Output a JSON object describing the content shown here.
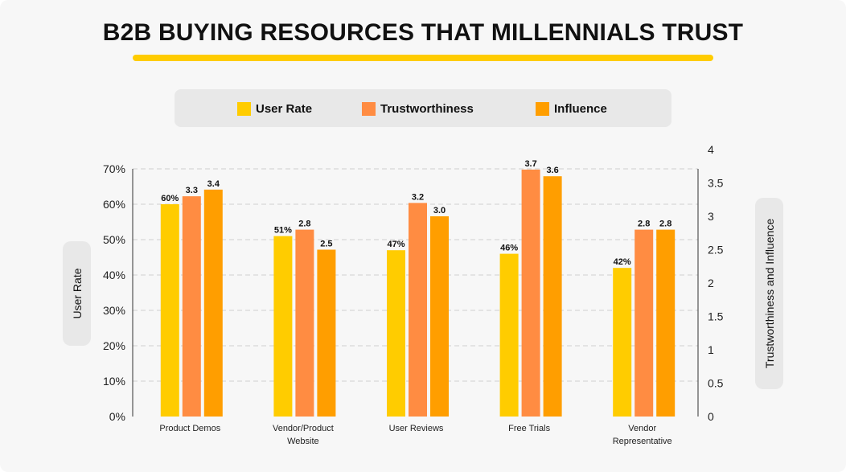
{
  "title": "B2B BUYING RESOURCES THAT MILLENNIALS TRUST",
  "legend": [
    {
      "label": "User Rate",
      "color": "#ffcc00"
    },
    {
      "label": "Trustworthiness",
      "color": "#ff8c42"
    },
    {
      "label": "Influence",
      "color": "#ff9e00"
    }
  ],
  "left_axis_title": "User Rate",
  "right_axis_title": "Trustworthiness and Influence",
  "chart_data": {
    "type": "bar",
    "title": "B2B BUYING RESOURCES THAT MILLENNIALS TRUST",
    "categories": [
      [
        "Product Demos"
      ],
      [
        "Vendor/Product",
        "Website"
      ],
      [
        "User Reviews"
      ],
      [
        "Free Trials"
      ],
      [
        "Vendor",
        "Representative"
      ]
    ],
    "series": [
      {
        "name": "User Rate",
        "axis": "left",
        "color": "#ffcc00",
        "values": [
          60,
          51,
          47,
          46,
          42
        ],
        "labels": [
          "60%",
          "51%",
          "47%",
          "46%",
          "42%"
        ]
      },
      {
        "name": "Trustworthiness",
        "axis": "right",
        "color": "#ff8c42",
        "values": [
          3.3,
          2.8,
          3.2,
          3.7,
          2.8
        ],
        "labels": [
          "3.3",
          "2.8",
          "3.2",
          "3.7",
          "2.8"
        ]
      },
      {
        "name": "Influence",
        "axis": "right",
        "color": "#ff9e00",
        "values": [
          3.4,
          2.5,
          3.0,
          3.6,
          2.8
        ],
        "labels": [
          "3.4",
          "2.5",
          "3.0",
          "3.6",
          "2.8"
        ]
      }
    ],
    "left_axis": {
      "label": "User Rate",
      "range": [
        0,
        70
      ],
      "ticks": [
        0,
        10,
        20,
        30,
        40,
        50,
        60,
        70
      ],
      "tick_labels": [
        "0%",
        "10%",
        "20%",
        "30%",
        "40%",
        "50%",
        "60%",
        "70%"
      ]
    },
    "right_axis": {
      "label": "Trustworthiness and Influence",
      "range": [
        0,
        4
      ],
      "ticks": [
        0,
        0.5,
        1,
        1.5,
        2,
        2.5,
        3,
        3.5,
        4
      ],
      "tick_labels": [
        "0",
        "0.5",
        "1",
        "1.5",
        "2",
        "2.5",
        "3",
        "3.5",
        "4"
      ]
    },
    "grid": true,
    "legend_position": "top"
  }
}
